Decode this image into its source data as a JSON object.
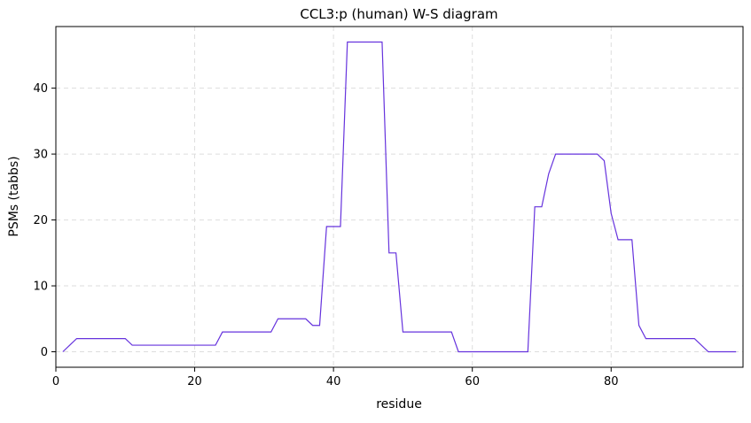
{
  "chart_data": {
    "type": "line",
    "title": "CCL3:p (human) W-S diagram",
    "xlabel": "residue",
    "ylabel": "PSMs (tabbs)",
    "x": [
      1,
      2,
      3,
      4,
      5,
      6,
      7,
      8,
      9,
      10,
      11,
      12,
      13,
      14,
      15,
      16,
      17,
      18,
      19,
      20,
      21,
      22,
      23,
      24,
      25,
      26,
      27,
      28,
      29,
      30,
      31,
      32,
      33,
      34,
      35,
      36,
      37,
      38,
      39,
      40,
      41,
      42,
      43,
      44,
      45,
      46,
      47,
      48,
      49,
      50,
      51,
      52,
      53,
      54,
      55,
      56,
      57,
      58,
      59,
      60,
      61,
      62,
      63,
      64,
      65,
      66,
      67,
      68,
      69,
      70,
      71,
      72,
      73,
      74,
      75,
      76,
      77,
      78,
      79,
      80,
      81,
      82,
      83,
      84,
      85,
      86,
      87,
      88,
      89,
      90,
      91,
      92,
      93,
      94,
      95,
      96,
      97,
      98
    ],
    "series": [
      {
        "name": "PSMs",
        "color": "#6633dd",
        "values": [
          0,
          1,
          2,
          2,
          2,
          2,
          2,
          2,
          2,
          2,
          1,
          1,
          1,
          1,
          1,
          1,
          1,
          1,
          1,
          1,
          1,
          1,
          1,
          3,
          3,
          3,
          3,
          3,
          3,
          3,
          3,
          5,
          5,
          5,
          5,
          5,
          4,
          4,
          19,
          19,
          19,
          47,
          47,
          47,
          47,
          47,
          47,
          15,
          15,
          3,
          3,
          3,
          3,
          3,
          3,
          3,
          3,
          0,
          0,
          0,
          0,
          0,
          0,
          0,
          0,
          0,
          0,
          0,
          22,
          22,
          27,
          30,
          30,
          30,
          30,
          30,
          30,
          30,
          29,
          21,
          17,
          17,
          17,
          4,
          2,
          2,
          2,
          2,
          2,
          2,
          2,
          2,
          1,
          0,
          0,
          0,
          0,
          0
        ]
      }
    ],
    "xlim": [
      0,
      99
    ],
    "ylim": [
      -2.35,
      49.35
    ],
    "xticks": [
      0,
      20,
      40,
      60,
      80
    ],
    "yticks": [
      0,
      10,
      20,
      30,
      40
    ],
    "grid": true
  }
}
